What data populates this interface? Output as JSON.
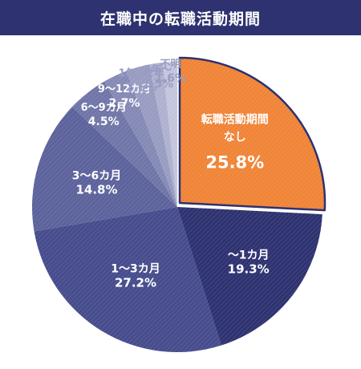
{
  "header": {
    "title": "在職中の転職活動期間"
  },
  "chart_data": {
    "type": "pie",
    "title": "在職中の転職活動期間",
    "start_angle_deg": 0,
    "direction": "clockwise",
    "slices": [
      {
        "label_lines": [
          "転職活動期間",
          "なし"
        ],
        "value": 25.8,
        "value_label": "25.8%",
        "color": "#f08437",
        "exploded": true
      },
      {
        "label_lines": [
          "～1カ月"
        ],
        "value": 19.3,
        "value_label": "19.3%",
        "color": "#2e3270"
      },
      {
        "label_lines": [
          "1～3カ月"
        ],
        "value": 27.2,
        "value_label": "27.2%",
        "color": "#464c8c"
      },
      {
        "label_lines": [
          "3～6カ月"
        ],
        "value": 14.8,
        "value_label": "14.8%",
        "color": "#5c629b"
      },
      {
        "label_lines": [
          "6～9カ月"
        ],
        "value": 4.5,
        "value_label": "4.5%",
        "color": "#7075a8"
      },
      {
        "label_lines": [
          "9～12カ月"
        ],
        "value": 2.7,
        "value_label": "2.7%",
        "color": "#8489b5"
      },
      {
        "label_lines": [
          "1年～2年"
        ],
        "value": 2.6,
        "value_label": "2.6%",
        "color": "#989cc1"
      },
      {
        "label_lines": [
          "2年～"
        ],
        "value": 1.5,
        "value_label": "1.5%",
        "color": "#aeb1cf"
      },
      {
        "label_lines": [
          "不明"
        ],
        "value": 1.6,
        "value_label": "1.6%",
        "color": "#c3c5dc"
      }
    ]
  }
}
